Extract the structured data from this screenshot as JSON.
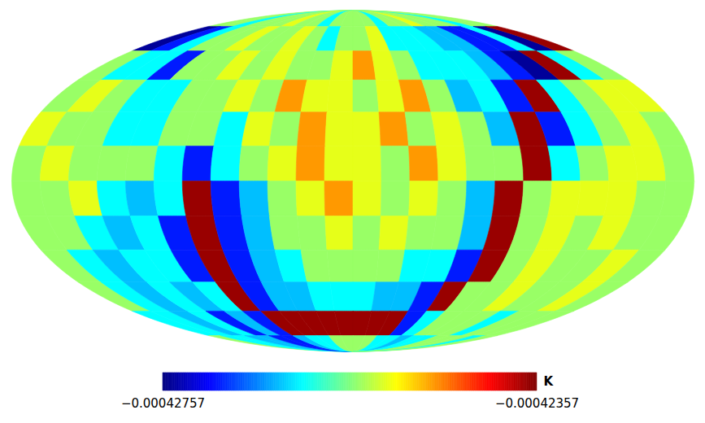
{
  "chart_data": {
    "type": "skymap",
    "color": "jet",
    "lon": [
      172.5,
      157.5,
      142.5,
      127.5,
      112.5,
      97.5,
      82.5,
      67.5,
      52.5,
      37.5,
      22.5,
      7.5,
      -7.5,
      -22.5,
      -37.5,
      -52.5,
      -67.5,
      -82.5,
      -97.5,
      -112.5,
      -127.5,
      -142.5,
      -157.5,
      -172.5
    ],
    "lat": [
      82.5,
      67.5,
      52.5,
      37.5,
      22.5,
      7.5,
      -7.5,
      -22.5,
      -37.5,
      -52.5,
      -67.5,
      -82.5
    ],
    "values": [
      [
        -0.00042547,
        -0.00042547,
        -0.00042607,
        -0.00042547,
        -0.00042547,
        -0.00042547,
        -0.00042517,
        -0.00042547,
        -0.00042547,
        -0.00042607,
        -0.00042547,
        -0.00042547,
        -0.00042547,
        -0.00042547,
        -0.00042607,
        -0.00042547,
        -0.00042547,
        -0.00042517,
        -0.00042547,
        -0.00042547,
        -0.00042547,
        -0.00042607,
        -0.00042547,
        -0.00042547
      ],
      [
        -0.00042747,
        -0.00042697,
        -0.00042607,
        -0.00042547,
        -0.00042547,
        -0.00042517,
        -0.00042547,
        -0.00042547,
        -0.00042517,
        -0.00042547,
        -0.00042607,
        -0.00042547,
        -0.00042547,
        -0.00042517,
        -0.00042607,
        -0.00042607,
        -0.00042607,
        -0.00042632,
        -0.00042632,
        -0.00042697,
        -0.00042697,
        -0.00042607,
        -0.00042747,
        -0.00042367
      ],
      [
        -0.00042547,
        -0.00042607,
        -0.00042607,
        -0.00042697,
        -0.00042547,
        -0.00042547,
        -0.00042517,
        -0.00042547,
        -0.00042517,
        -0.00042547,
        -0.00042547,
        -0.00042517,
        -0.00042467,
        -0.00042517,
        -0.00042547,
        -0.00042607,
        -0.00042607,
        -0.00042607,
        -0.00042632,
        -0.00042697,
        -0.00042747,
        -0.00042367,
        -0.00042607,
        -0.00042547
      ],
      [
        -0.00042547,
        -0.00042517,
        -0.00042547,
        -0.00042607,
        -0.00042607,
        -0.00042547,
        -0.00042547,
        -0.00042517,
        -0.00042547,
        -0.00042467,
        -0.00042517,
        -0.00042517,
        -0.00042547,
        -0.00042517,
        -0.00042467,
        -0.00042547,
        -0.00042632,
        -0.00042607,
        -0.00042697,
        -0.00042367,
        -0.00042607,
        -0.00042547,
        -0.00042517,
        -0.00042517
      ],
      [
        -0.00042517,
        -0.00042547,
        -0.00042547,
        -0.00042607,
        -0.00042607,
        -0.00042547,
        -0.00042547,
        -0.00042607,
        -0.00042517,
        -0.00042547,
        -0.00042467,
        -0.00042517,
        -0.00042517,
        -0.00042467,
        -0.00042547,
        -0.00042517,
        -0.00042547,
        -0.00042632,
        -0.00042367,
        -0.00042697,
        -0.00042607,
        -0.00042547,
        -0.00042517,
        -0.00042547
      ],
      [
        -0.00042547,
        -0.00042517,
        -0.00042547,
        -0.00042547,
        -0.00042547,
        -0.00042607,
        -0.00042697,
        -0.00042607,
        -0.00042547,
        -0.00042517,
        -0.00042467,
        -0.00042517,
        -0.00042517,
        -0.00042547,
        -0.00042467,
        -0.00042517,
        -0.00042547,
        -0.00042547,
        -0.00042367,
        -0.00042607,
        -0.00042547,
        -0.00042517,
        -0.00042517,
        -0.00042547
      ],
      [
        -0.00042547,
        -0.00042547,
        -0.00042517,
        -0.00042607,
        -0.00042632,
        -0.00042607,
        -0.00042367,
        -0.00042697,
        -0.00042632,
        -0.00042547,
        -0.00042517,
        -0.00042467,
        -0.00042517,
        -0.00042547,
        -0.00042517,
        -0.00042547,
        -0.00042632,
        -0.00042367,
        -0.00042547,
        -0.00042517,
        -0.00042517,
        -0.00042517,
        -0.00042547,
        -0.00042547
      ],
      [
        -0.00042547,
        -0.00042547,
        -0.00042607,
        -0.00042632,
        -0.00042607,
        -0.00042697,
        -0.00042367,
        -0.00042697,
        -0.00042632,
        -0.00042547,
        -0.00042547,
        -0.00042517,
        -0.00042547,
        -0.00042517,
        -0.00042547,
        -0.00042547,
        -0.00042632,
        -0.00042367,
        -0.00042547,
        -0.00042517,
        -0.00042547,
        -0.00042517,
        -0.00042547,
        -0.00042547
      ],
      [
        -0.00042547,
        -0.00042607,
        -0.00042632,
        -0.00042607,
        -0.00042607,
        -0.00042697,
        -0.00042367,
        -0.00042697,
        -0.00042632,
        -0.00042607,
        -0.00042547,
        -0.00042547,
        -0.00042547,
        -0.00042547,
        -0.00042607,
        -0.00042607,
        -0.00042697,
        -0.00042367,
        -0.00042547,
        -0.00042517,
        -0.00042547,
        -0.00042547,
        -0.00042517,
        -0.00042547
      ],
      [
        -0.00042547,
        -0.00042607,
        -0.00042632,
        -0.00042607,
        -0.00042632,
        -0.00042607,
        -0.00042367,
        -0.00042697,
        -0.00042632,
        -0.00042632,
        -0.00042607,
        -0.00042607,
        -0.00042607,
        -0.00042632,
        -0.00042632,
        -0.00042697,
        -0.00042367,
        -0.00042547,
        -0.00042547,
        -0.00042517,
        -0.00042547,
        -0.00042547,
        -0.00042517,
        -0.00042547
      ],
      [
        -0.00042607,
        -0.00042607,
        -0.00042632,
        -0.00042607,
        -0.00042697,
        -0.00042632,
        -0.00042697,
        -0.00042367,
        -0.00042367,
        -0.00042367,
        -0.00042367,
        -0.00042367,
        -0.00042367,
        -0.00042367,
        -0.00042367,
        -0.00042697,
        -0.00042607,
        -0.00042547,
        -0.00042547,
        -0.00042547,
        -0.00042607,
        -0.00042547,
        -0.00042547,
        -0.00042547
      ],
      [
        -0.00042547,
        -0.00042607,
        -0.00042607,
        -0.00042632,
        -0.00042632,
        -0.00042697,
        -0.00042697,
        -0.00042632,
        -0.00042607,
        -0.00042607,
        -0.00042547,
        -0.00042547,
        -0.00042547,
        -0.00042547,
        -0.00042607,
        -0.00042607,
        -0.00042632,
        -0.00042607,
        -0.00042607,
        -0.00042547,
        -0.00042547,
        -0.00042547,
        -0.00042607,
        -0.00042547
      ]
    ],
    "colorbar": {
      "label": "K",
      "range": [
        -0.00042757,
        -0.00042357
      ],
      "ticks": [
        {
          "value": -0.00042757,
          "label": "−0.00042757"
        },
        {
          "value": -0.00042357,
          "label": "−0.00042357"
        }
      ]
    }
  }
}
